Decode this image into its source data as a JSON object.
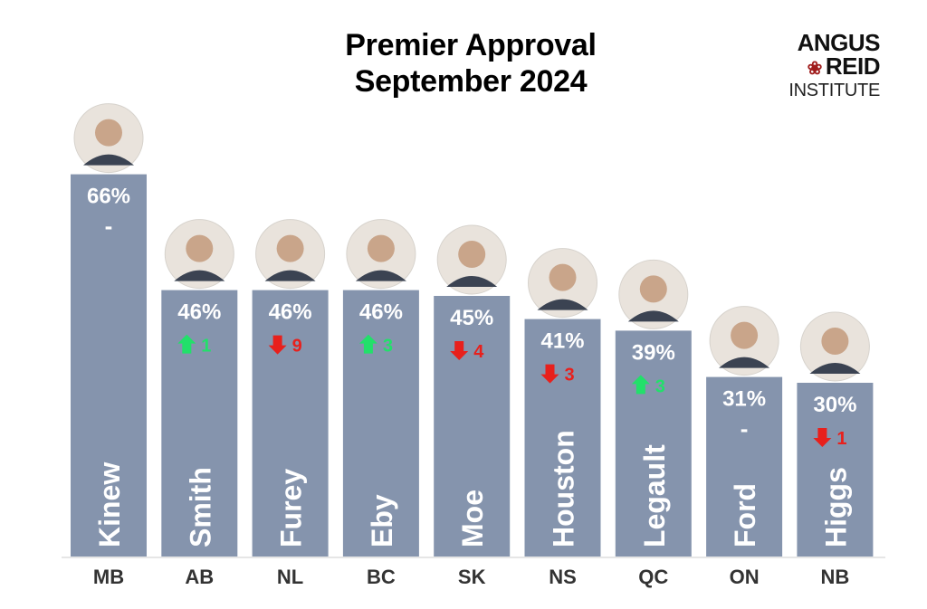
{
  "title_line1": "Premier Approval",
  "title_line2": "September 2024",
  "logo": {
    "line1": "ANGUS",
    "line2": "REID",
    "line3": "INSTITUTE"
  },
  "colors": {
    "bar": "#8594ad",
    "up": "#22e06a",
    "down": "#e8201c",
    "axis": "#cccccc"
  },
  "chart_data": {
    "type": "bar",
    "title": "Premier Approval September 2024",
    "ylim": [
      0,
      100
    ],
    "categories": [
      "MB",
      "AB",
      "NL",
      "BC",
      "SK",
      "NS",
      "QC",
      "ON",
      "NB"
    ],
    "names": [
      "Kinew",
      "Smith",
      "Furey",
      "Eby",
      "Moe",
      "Houston",
      "Legault",
      "Ford",
      "Higgs"
    ],
    "values": [
      66,
      46,
      46,
      46,
      45,
      41,
      39,
      31,
      30
    ],
    "labels": [
      "66%",
      "46%",
      "46%",
      "46%",
      "45%",
      "41%",
      "39%",
      "31%",
      "30%"
    ],
    "change_dir": [
      "none",
      "up",
      "down",
      "up",
      "down",
      "down",
      "up",
      "none",
      "down"
    ],
    "change_text": [
      "-",
      "1",
      "9",
      "3",
      "4",
      "3",
      "3",
      "-",
      "1"
    ]
  }
}
